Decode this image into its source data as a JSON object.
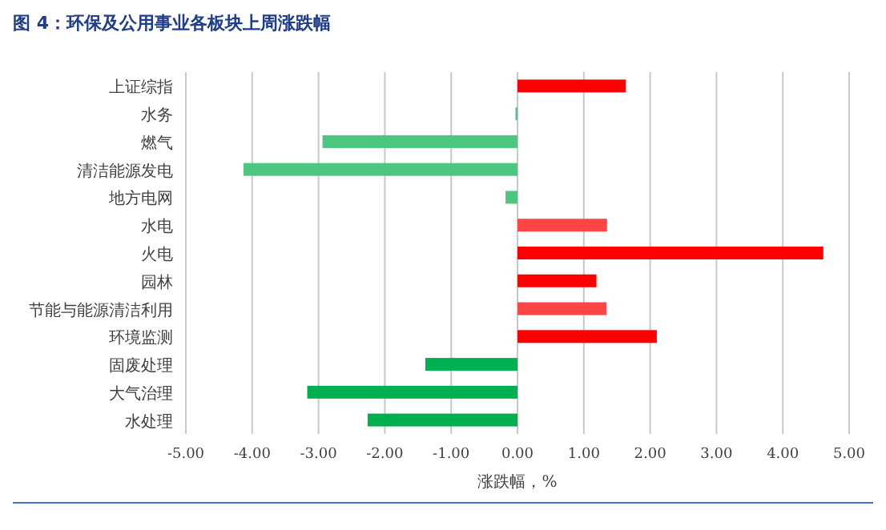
{
  "chart_data": {
    "type": "bar",
    "orientation": "horizontal",
    "title": "图 4：环保及公用事业各板块上周涨跌幅",
    "categories": [
      "上证综指",
      "水务",
      "燃气",
      "清洁能源发电",
      "地方电网",
      "水电",
      "火电",
      "园林",
      "节能与能源清洁利用",
      "环境监测",
      "固废处理",
      "大气治理",
      "水处理"
    ],
    "values": [
      1.63,
      -0.03,
      -2.94,
      -4.13,
      -0.18,
      1.35,
      4.61,
      1.19,
      1.34,
      2.1,
      -1.39,
      -3.17,
      -2.26
    ],
    "colors": [
      "#ff0000",
      "#4dc77f",
      "#4dc77f",
      "#4dc77f",
      "#4dc77f",
      "#ff4545",
      "#ff0000",
      "#ff0000",
      "#ff4545",
      "#ff0000",
      "#00b050",
      "#00b050",
      "#00b050"
    ],
    "xlabel": "涨跌幅，%",
    "xlim": [
      -5,
      5
    ],
    "xticks": [
      {
        "value": -5,
        "label": "-5.00"
      },
      {
        "value": -4,
        "label": "-4.00"
      },
      {
        "value": -3,
        "label": "-3.00"
      },
      {
        "value": -2,
        "label": "-2.00"
      },
      {
        "value": -1,
        "label": "-1.00"
      },
      {
        "value": 0,
        "label": "0.00"
      },
      {
        "value": 1,
        "label": "1.00"
      },
      {
        "value": 2,
        "label": "2.00"
      },
      {
        "value": 3,
        "label": "3.00"
      },
      {
        "value": 4,
        "label": "4.00"
      },
      {
        "value": 5,
        "label": "5.00"
      }
    ],
    "grid": "x"
  }
}
